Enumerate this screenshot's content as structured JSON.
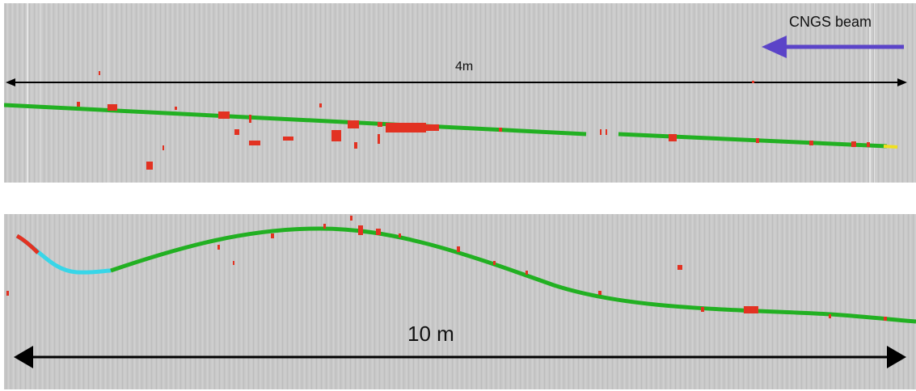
{
  "top_panel": {
    "scale_label": "4m",
    "beam_label": "CNGS beam"
  },
  "bottom_panel": {
    "scale_label": "10 m"
  },
  "colors": {
    "background": "#c9c9c9",
    "track": "#22b022",
    "hits": "#e23222",
    "cyan_segment": "#38d6e8",
    "yellow_end": "#f0e020",
    "beam_arrow": "#5b44c8",
    "scale_arrow": "#000000"
  }
}
